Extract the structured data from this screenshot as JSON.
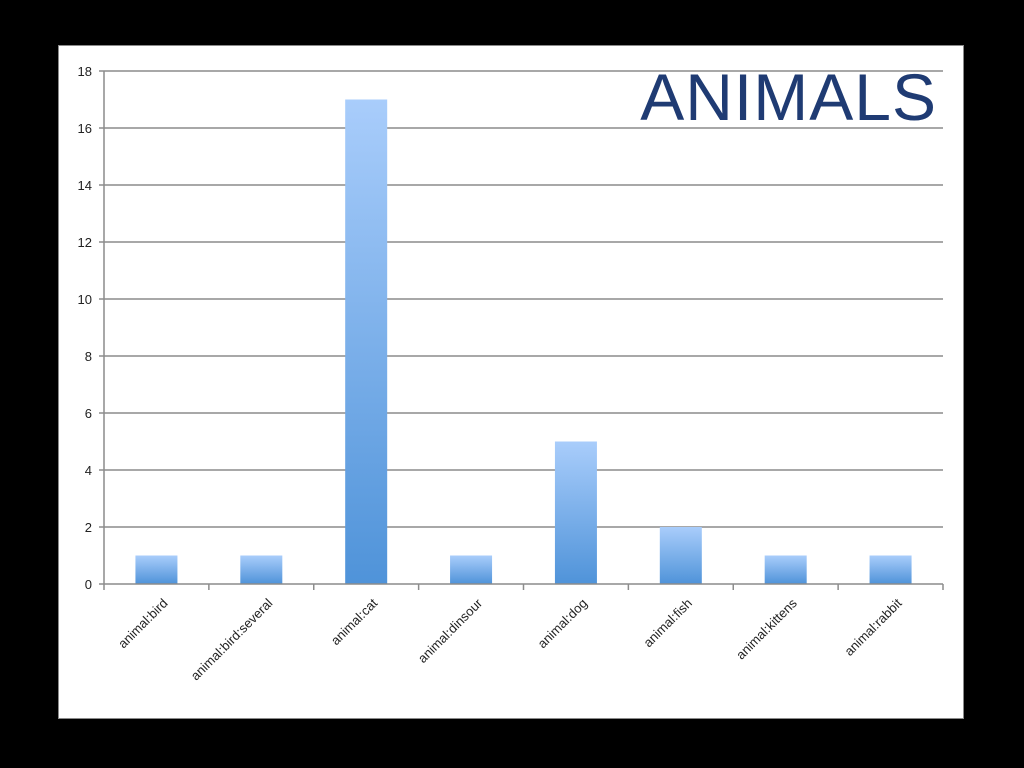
{
  "chart_data": {
    "type": "bar",
    "title": "ANIMALS",
    "categories": [
      "animal:bird",
      "animal:bird:several",
      "animal:cat",
      "animal:dinsour",
      "animal:dog",
      "animal:fish",
      "animal:kittens",
      "animal:rabbit"
    ],
    "values": [
      1,
      1,
      17,
      1,
      5,
      2,
      1,
      1
    ],
    "ylim": [
      0,
      18
    ],
    "yticks": [
      "0",
      "2",
      "4",
      "6",
      "8",
      "10",
      "12",
      "14",
      "16",
      "18"
    ],
    "grid": true,
    "legend": "none",
    "colors": {
      "bar_top": "#a9cdfb",
      "bar_bottom": "#4f93d9",
      "title": "#1f3b73",
      "grid": "#8c8c8c",
      "background": "#000000",
      "plot_background": "#ffffff"
    }
  }
}
